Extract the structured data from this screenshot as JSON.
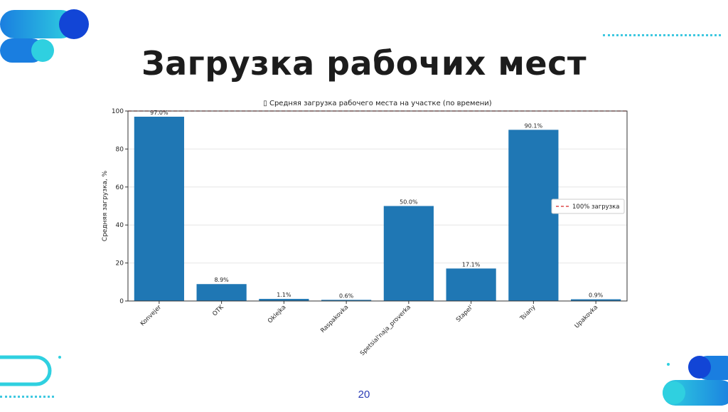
{
  "slide": {
    "title": "Загрузка рабочих мест",
    "page_number": "20"
  },
  "colors": {
    "bar": "#1f77b4",
    "reference_line": "#d62728",
    "accent_blue": "#1245d6",
    "accent_cyan": "#2fd0e0"
  },
  "chart_data": {
    "type": "bar",
    "title": "▯ Средняя загрузка рабочего места на участке (по времени)",
    "xlabel": "",
    "ylabel": "Средняя загрузка, %",
    "ylim": [
      0,
      100
    ],
    "yticks": [
      "0",
      "20",
      "40",
      "60",
      "80",
      "100"
    ],
    "categories": [
      "Konvejer",
      "OTK",
      "Oklejka",
      "Raspakovka",
      "Spetsial'naja_proverka",
      "Stapel'",
      "Tsiany",
      "Upakovka"
    ],
    "values": [
      97.0,
      8.9,
      1.1,
      0.6,
      50.0,
      17.1,
      90.1,
      0.9
    ],
    "value_labels": [
      "97.0%",
      "8.9%",
      "1.1%",
      "0.6%",
      "50.0%",
      "17.1%",
      "90.1%",
      "0.9%"
    ],
    "reference_line": {
      "value": 100,
      "label": "100% загрузка",
      "style": "dashed"
    },
    "legend": {
      "position": "right"
    },
    "grid": true
  }
}
